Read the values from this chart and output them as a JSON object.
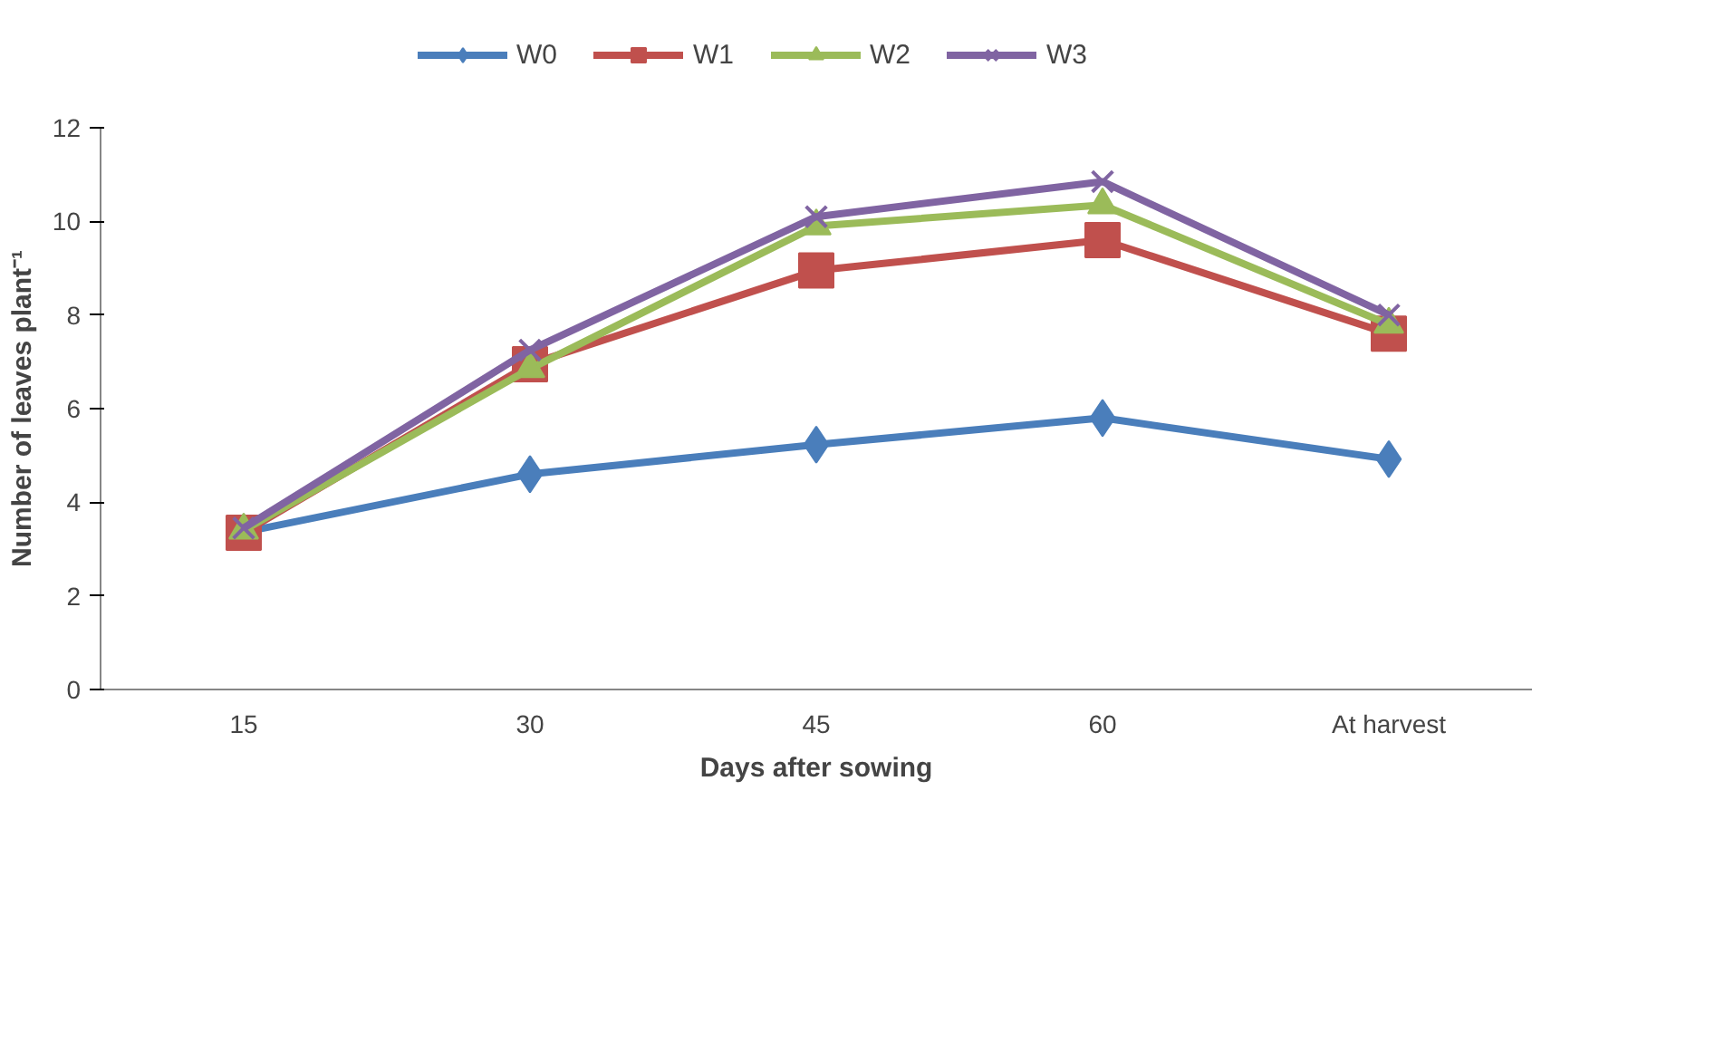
{
  "chart_data": {
    "type": "line",
    "xlabel": "Days after sowing",
    "ylabel": "Number of leaves plant⁻¹",
    "categories": [
      "15",
      "30",
      "45",
      "60",
      "At harvest"
    ],
    "ylim": [
      0,
      12
    ],
    "yticks": [
      0,
      2,
      4,
      6,
      8,
      10,
      12
    ],
    "grid": false,
    "legend": "top",
    "line_style": "solid",
    "series": [
      {
        "name": "W0",
        "color": "#4a7ebb",
        "marker": "diamond",
        "values": [
          3.36,
          4.6,
          5.23,
          5.8,
          4.92
        ]
      },
      {
        "name": "W1",
        "color": "#c0504d",
        "marker": "square",
        "values": [
          3.35,
          6.95,
          8.95,
          9.6,
          7.6
        ]
      },
      {
        "name": "W2",
        "color": "#9bbb59",
        "marker": "triangle",
        "values": [
          3.4,
          6.85,
          9.9,
          10.35,
          7.8
        ]
      },
      {
        "name": "W3",
        "color": "#8064a2",
        "marker": "cross",
        "values": [
          3.45,
          7.25,
          10.1,
          10.85,
          8.0
        ]
      }
    ]
  }
}
